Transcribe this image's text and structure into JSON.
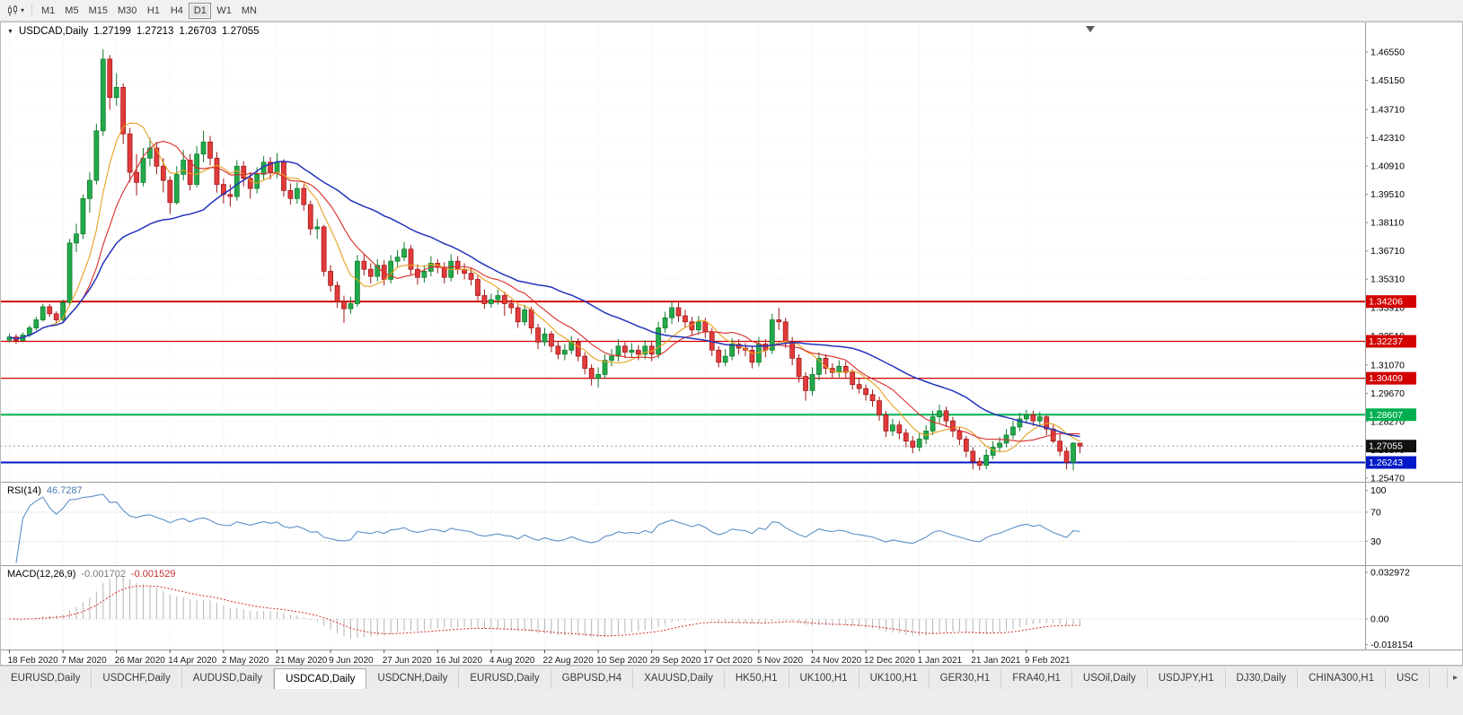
{
  "toolbar": {
    "chart_type_tool": {
      "icon": "candlestick-chart",
      "dropdown": "▾"
    },
    "timeframes": [
      {
        "label": "M1",
        "active": false
      },
      {
        "label": "M5",
        "active": false
      },
      {
        "label": "M15",
        "active": false
      },
      {
        "label": "M30",
        "active": false
      },
      {
        "label": "H1",
        "active": false
      },
      {
        "label": "H4",
        "active": false
      },
      {
        "label": "D1",
        "active": true
      },
      {
        "label": "W1",
        "active": false
      },
      {
        "label": "MN",
        "active": false
      }
    ]
  },
  "quote_header": {
    "symbol": "USDCAD,Daily",
    "open": "1.27199",
    "high": "1.27213",
    "low": "1.26703",
    "close": "1.27055"
  },
  "chart_data": {
    "type": "candlestick",
    "symbol": "USDCAD",
    "timeframe": "Daily",
    "bull_color": "#23a94a",
    "bull_edge": "#0e7a2c",
    "bear_color": "#e23b3b",
    "bear_edge": "#9e1515",
    "price_scale_labels": [
      "1.46550",
      "1.45150",
      "1.43710",
      "1.42310",
      "1.40910",
      "1.39510",
      "1.38110",
      "1.36710",
      "1.35310",
      "1.33910",
      "1.32510",
      "1.31070",
      "1.29670",
      "1.28270",
      "1.26870",
      "1.25470"
    ],
    "x_labels": [
      "18 Feb 2020",
      "7 Mar 2020",
      "26 Mar 2020",
      "14 Apr 2020",
      "2 May 2020",
      "21 May 2020",
      "9 Jun 2020",
      "27 Jun 2020",
      "16 Jul 2020",
      "4 Aug 2020",
      "22 Aug 2020",
      "10 Sep 2020",
      "29 Sep 2020",
      "17 Oct 2020",
      "5 Nov 2020",
      "24 Nov 2020",
      "12 Dec 2020",
      "1 Jan 2021",
      "21 Jan 2021",
      "9 Feb 2021"
    ],
    "candles": {
      "format": "[high, low, close]; open = previous close",
      "first_open": 1.323,
      "hlc": [
        [
          1.3262,
          1.3218,
          1.3245
        ],
        [
          1.3259,
          1.3212,
          1.3228
        ],
        [
          1.3268,
          1.322,
          1.3255
        ],
        [
          1.3302,
          1.3245,
          1.329
        ],
        [
          1.3345,
          1.3278,
          1.333
        ],
        [
          1.341,
          1.3322,
          1.3395
        ],
        [
          1.3408,
          1.3345,
          1.336
        ],
        [
          1.3372,
          1.3312,
          1.333
        ],
        [
          1.343,
          1.332,
          1.3415
        ],
        [
          1.373,
          1.34,
          1.371
        ],
        [
          1.3805,
          1.3665,
          1.3755
        ],
        [
          1.395,
          1.373,
          1.393
        ],
        [
          1.406,
          1.386,
          1.402
        ],
        [
          1.43,
          1.4,
          1.4265
        ],
        [
          1.4668,
          1.424,
          1.462
        ],
        [
          1.464,
          1.437,
          1.443
        ],
        [
          1.455,
          1.439,
          1.448
        ],
        [
          1.45,
          1.42,
          1.425
        ],
        [
          1.428,
          1.401,
          1.406
        ],
        [
          1.415,
          1.3945,
          1.401
        ],
        [
          1.418,
          1.399,
          1.413
        ],
        [
          1.423,
          1.409,
          1.418
        ],
        [
          1.421,
          1.405,
          1.409
        ],
        [
          1.413,
          1.396,
          1.402
        ],
        [
          1.404,
          1.3855,
          1.391
        ],
        [
          1.409,
          1.39,
          1.405
        ],
        [
          1.417,
          1.402,
          1.412
        ],
        [
          1.415,
          1.397,
          1.4
        ],
        [
          1.419,
          1.3985,
          1.415
        ],
        [
          1.4265,
          1.411,
          1.421
        ],
        [
          1.424,
          1.4095,
          1.413
        ],
        [
          1.416,
          1.396,
          1.4
        ],
        [
          1.403,
          1.3905,
          1.395
        ],
        [
          1.4,
          1.389,
          1.394
        ],
        [
          1.412,
          1.392,
          1.409
        ],
        [
          1.4115,
          1.399,
          1.403
        ],
        [
          1.406,
          1.393,
          1.398
        ],
        [
          1.4085,
          1.3955,
          1.405
        ],
        [
          1.414,
          1.402,
          1.411
        ],
        [
          1.4135,
          1.4025,
          1.406
        ],
        [
          1.4155,
          1.403,
          1.411
        ],
        [
          1.4125,
          1.394,
          1.397
        ],
        [
          1.4005,
          1.39,
          1.393
        ],
        [
          1.401,
          1.3905,
          1.398
        ],
        [
          1.4,
          1.387,
          1.39
        ],
        [
          1.392,
          1.375,
          1.378
        ],
        [
          1.383,
          1.373,
          1.379
        ],
        [
          1.38,
          1.3545,
          1.357
        ],
        [
          1.36,
          1.347,
          1.35
        ],
        [
          1.352,
          1.339,
          1.342
        ],
        [
          1.345,
          1.3315,
          1.3385
        ],
        [
          1.3445,
          1.336,
          1.341
        ],
        [
          1.365,
          1.3395,
          1.362
        ],
        [
          1.3655,
          1.355,
          1.358
        ],
        [
          1.361,
          1.351,
          1.3545
        ],
        [
          1.363,
          1.352,
          1.36
        ],
        [
          1.3625,
          1.35,
          1.353
        ],
        [
          1.365,
          1.351,
          1.362
        ],
        [
          1.3675,
          1.359,
          1.364
        ],
        [
          1.3715,
          1.362,
          1.368
        ],
        [
          1.37,
          1.3555,
          1.358
        ],
        [
          1.3605,
          1.3505,
          1.354
        ],
        [
          1.36,
          1.3515,
          1.357
        ],
        [
          1.3645,
          1.3545,
          1.361
        ],
        [
          1.363,
          1.356,
          1.359
        ],
        [
          1.3615,
          1.351,
          1.354
        ],
        [
          1.3655,
          1.352,
          1.362
        ],
        [
          1.3645,
          1.3555,
          1.358
        ],
        [
          1.361,
          1.353,
          1.356
        ],
        [
          1.3585,
          1.35,
          1.353
        ],
        [
          1.355,
          1.3425,
          1.345
        ],
        [
          1.348,
          1.3385,
          1.341
        ],
        [
          1.346,
          1.339,
          1.343
        ],
        [
          1.348,
          1.3405,
          1.345
        ],
        [
          1.347,
          1.335,
          1.341
        ],
        [
          1.343,
          1.336,
          1.339
        ],
        [
          1.3405,
          1.329,
          1.332
        ],
        [
          1.3405,
          1.33,
          1.338
        ],
        [
          1.3395,
          1.326,
          1.329
        ],
        [
          1.331,
          1.3185,
          1.322
        ],
        [
          1.329,
          1.32,
          1.326
        ],
        [
          1.3275,
          1.317,
          1.32
        ],
        [
          1.3225,
          1.3135,
          1.316
        ],
        [
          1.321,
          1.313,
          1.318
        ],
        [
          1.325,
          1.316,
          1.322
        ],
        [
          1.324,
          1.3125,
          1.315
        ],
        [
          1.317,
          1.306,
          1.309
        ],
        [
          1.311,
          1.3005,
          1.304
        ],
        [
          1.3095,
          1.2995,
          1.306
        ],
        [
          1.316,
          1.304,
          1.313
        ],
        [
          1.3185,
          1.31,
          1.315
        ],
        [
          1.3235,
          1.3125,
          1.32
        ],
        [
          1.322,
          1.314,
          1.317
        ],
        [
          1.3215,
          1.3145,
          1.318
        ],
        [
          1.3205,
          1.313,
          1.316
        ],
        [
          1.323,
          1.3135,
          1.32
        ],
        [
          1.3225,
          1.3125,
          1.316
        ],
        [
          1.332,
          1.314,
          1.329
        ],
        [
          1.337,
          1.3265,
          1.334
        ],
        [
          1.342,
          1.331,
          1.339
        ],
        [
          1.3415,
          1.332,
          1.335
        ],
        [
          1.338,
          1.329,
          1.332
        ],
        [
          1.3345,
          1.325,
          1.328
        ],
        [
          1.335,
          1.3255,
          1.332
        ],
        [
          1.334,
          1.324,
          1.327
        ],
        [
          1.329,
          1.315,
          1.318
        ],
        [
          1.32,
          1.3095,
          1.312
        ],
        [
          1.3185,
          1.31,
          1.315
        ],
        [
          1.324,
          1.313,
          1.321
        ],
        [
          1.3235,
          1.316,
          1.319
        ],
        [
          1.3215,
          1.315,
          1.318
        ],
        [
          1.32,
          1.309,
          1.312
        ],
        [
          1.3245,
          1.31,
          1.321
        ],
        [
          1.3235,
          1.3145,
          1.318
        ],
        [
          1.336,
          1.316,
          1.333
        ],
        [
          1.339,
          1.328,
          1.332
        ],
        [
          1.334,
          1.319,
          1.322
        ],
        [
          1.3245,
          1.3105,
          1.314
        ],
        [
          1.316,
          1.302,
          1.305
        ],
        [
          1.307,
          1.293,
          1.298
        ],
        [
          1.3095,
          1.2955,
          1.306
        ],
        [
          1.317,
          1.303,
          1.314
        ],
        [
          1.316,
          1.306,
          1.309
        ],
        [
          1.3115,
          1.304,
          1.307
        ],
        [
          1.313,
          1.3045,
          1.31
        ],
        [
          1.3125,
          1.304,
          1.307
        ],
        [
          1.3085,
          1.2985,
          1.301
        ],
        [
          1.304,
          1.2965,
          1.299
        ],
        [
          1.301,
          1.293,
          1.296
        ],
        [
          1.2985,
          1.29,
          1.293
        ],
        [
          1.295,
          1.283,
          1.286
        ],
        [
          1.288,
          1.275,
          1.278
        ],
        [
          1.284,
          1.2755,
          1.281
        ],
        [
          1.283,
          1.274,
          1.277
        ],
        [
          1.279,
          1.27,
          1.273
        ],
        [
          1.2755,
          1.267,
          1.27
        ],
        [
          1.277,
          1.268,
          1.274
        ],
        [
          1.281,
          1.2715,
          1.278
        ],
        [
          1.288,
          1.276,
          1.285
        ],
        [
          1.291,
          1.282,
          1.288
        ],
        [
          1.29,
          1.28,
          1.283
        ],
        [
          1.285,
          1.275,
          1.278
        ],
        [
          1.28,
          1.271,
          1.274
        ],
        [
          1.2755,
          1.265,
          1.268
        ],
        [
          1.27,
          1.259,
          1.263
        ],
        [
          1.265,
          1.2585,
          1.261
        ],
        [
          1.269,
          1.259,
          1.266
        ],
        [
          1.273,
          1.264,
          1.27
        ],
        [
          1.275,
          1.268,
          1.272
        ],
        [
          1.279,
          1.27,
          1.276
        ],
        [
          1.283,
          1.274,
          1.28
        ],
        [
          1.287,
          1.278,
          1.284
        ],
        [
          1.2885,
          1.282,
          1.286
        ],
        [
          1.288,
          1.2805,
          1.283
        ],
        [
          1.2875,
          1.28,
          1.285
        ],
        [
          1.286,
          1.276,
          1.279
        ],
        [
          1.281,
          1.272,
          1.273
        ],
        [
          1.277,
          1.2655,
          1.268
        ],
        [
          1.27,
          1.259,
          1.2625
        ],
        [
          1.2725,
          1.2585,
          1.272
        ],
        [
          1.27213,
          1.26703,
          1.27055
        ]
      ]
    },
    "moving_averages": [
      {
        "period": 7,
        "color": "#e8a11f"
      },
      {
        "period": 12,
        "color": "#d92b2b"
      },
      {
        "period": 30,
        "color": "#2233bb"
      }
    ],
    "horizontal_lines": [
      {
        "price": 1.34206,
        "label": "1.34206",
        "color": "#d40000",
        "width": 2
      },
      {
        "price": 1.32237,
        "label": "1.32237",
        "color": "#d40000",
        "width": 1.2
      },
      {
        "price": 1.30409,
        "label": "1.30409",
        "color": "#d40000",
        "width": 1.2
      },
      {
        "price": 1.28607,
        "label": "1.28607",
        "color": "#00b050",
        "width": 2
      },
      {
        "price": 1.26243,
        "label": "1.26243",
        "color": "#0018c8",
        "width": 2
      }
    ],
    "bid_line": {
      "price": 1.27055,
      "label": "1.27055",
      "box_color": "#101010",
      "line_color": "#9a9a9a"
    },
    "indicators": [
      {
        "name": "RSI",
        "params": "14",
        "label": "RSI(14)",
        "value": "46.7287",
        "color": "#5d8fc6",
        "levels": [
          70,
          30
        ],
        "scale_labels": [
          "100",
          "70",
          "30"
        ]
      },
      {
        "name": "MACD",
        "params": "12,26,9",
        "label": "MACD(12,26,9)",
        "value_main": "-0.001702",
        "value_signal": "-0.001529",
        "histogram_color": "#b5b5b5",
        "signal_color": "#d92b2b",
        "scale_labels": [
          "0.032972",
          "0.00",
          "-0.018154"
        ]
      }
    ]
  },
  "tabbar": {
    "tabs": [
      {
        "label": "EURUSD,Daily",
        "active": false
      },
      {
        "label": "USDCHF,Daily",
        "active": false
      },
      {
        "label": "AUDUSD,Daily",
        "active": false
      },
      {
        "label": "USDCAD,Daily",
        "active": true
      },
      {
        "label": "USDCNH,Daily",
        "active": false
      },
      {
        "label": "EURUSD,Daily",
        "active": false
      },
      {
        "label": "GBPUSD,H4",
        "active": false
      },
      {
        "label": "XAUUSD,Daily",
        "active": false
      },
      {
        "label": "HK50,H1",
        "active": false
      },
      {
        "label": "UK100,H1",
        "active": false
      },
      {
        "label": "UK100,H1",
        "active": false
      },
      {
        "label": "GER30,H1",
        "active": false
      },
      {
        "label": "FRA40,H1",
        "active": false
      },
      {
        "label": "USOil,Daily",
        "active": false
      },
      {
        "label": "USDJPY,H1",
        "active": false
      },
      {
        "label": "DJ30,Daily",
        "active": false
      },
      {
        "label": "CHINA300,H1",
        "active": false
      },
      {
        "label": "USC",
        "active": false
      }
    ],
    "scroll_right": "▸"
  }
}
